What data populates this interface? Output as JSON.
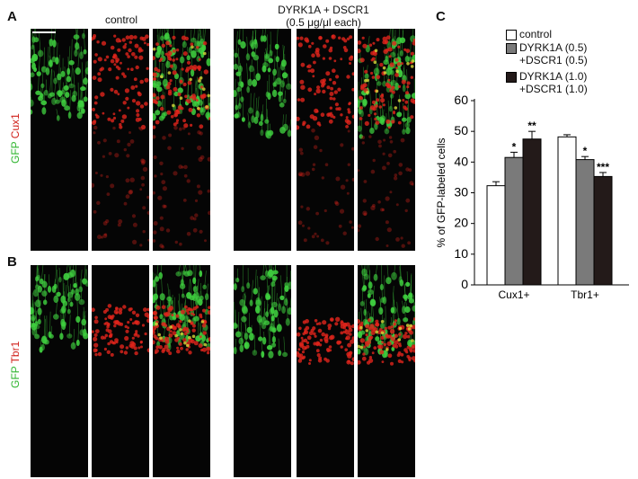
{
  "panels": {
    "A": "A",
    "B": "B",
    "C": "C"
  },
  "micrographs": {
    "control_header": "control",
    "treated_header_line1": "DYRK1A + DSCR1",
    "treated_header_line2": "(0.5 μg/μl each)",
    "row_A_label": {
      "green": "GFP",
      "red": "Cux1"
    },
    "row_B_label": {
      "green": "GFP",
      "red": "Tbr1"
    },
    "colors": {
      "green": "#3fcf3f",
      "red": "#e0241c",
      "yellow": "#d8d83a",
      "background": "#050505"
    }
  },
  "chart_data": {
    "type": "bar",
    "categories": [
      "Cux1+",
      "Tbr1+"
    ],
    "series": [
      {
        "name": "control",
        "values": [
          32.3,
          48.2
        ],
        "errors": [
          1.3,
          0.7
        ],
        "color": "#ffffff",
        "sig": [
          "",
          ""
        ]
      },
      {
        "name": "DYRK1A (0.5)\n+DSCR1 (0.5)",
        "values": [
          41.5,
          40.8
        ],
        "errors": [
          1.7,
          1.0
        ],
        "color": "#7a7a7a",
        "sig": [
          "*",
          "*"
        ]
      },
      {
        "name": "DYRK1A (1.0)\n+DSCR1 (1.0)",
        "values": [
          47.5,
          35.3
        ],
        "errors": [
          2.5,
          1.3
        ],
        "color": "#231a19",
        "sig": [
          "**",
          "***"
        ]
      }
    ],
    "ylabel": "% of GFP-labeled cells",
    "ylim": [
      0,
      60
    ],
    "yticks": [
      0,
      10,
      20,
      30,
      40,
      50,
      60
    ],
    "legend_position": "top-left",
    "grid": false
  }
}
